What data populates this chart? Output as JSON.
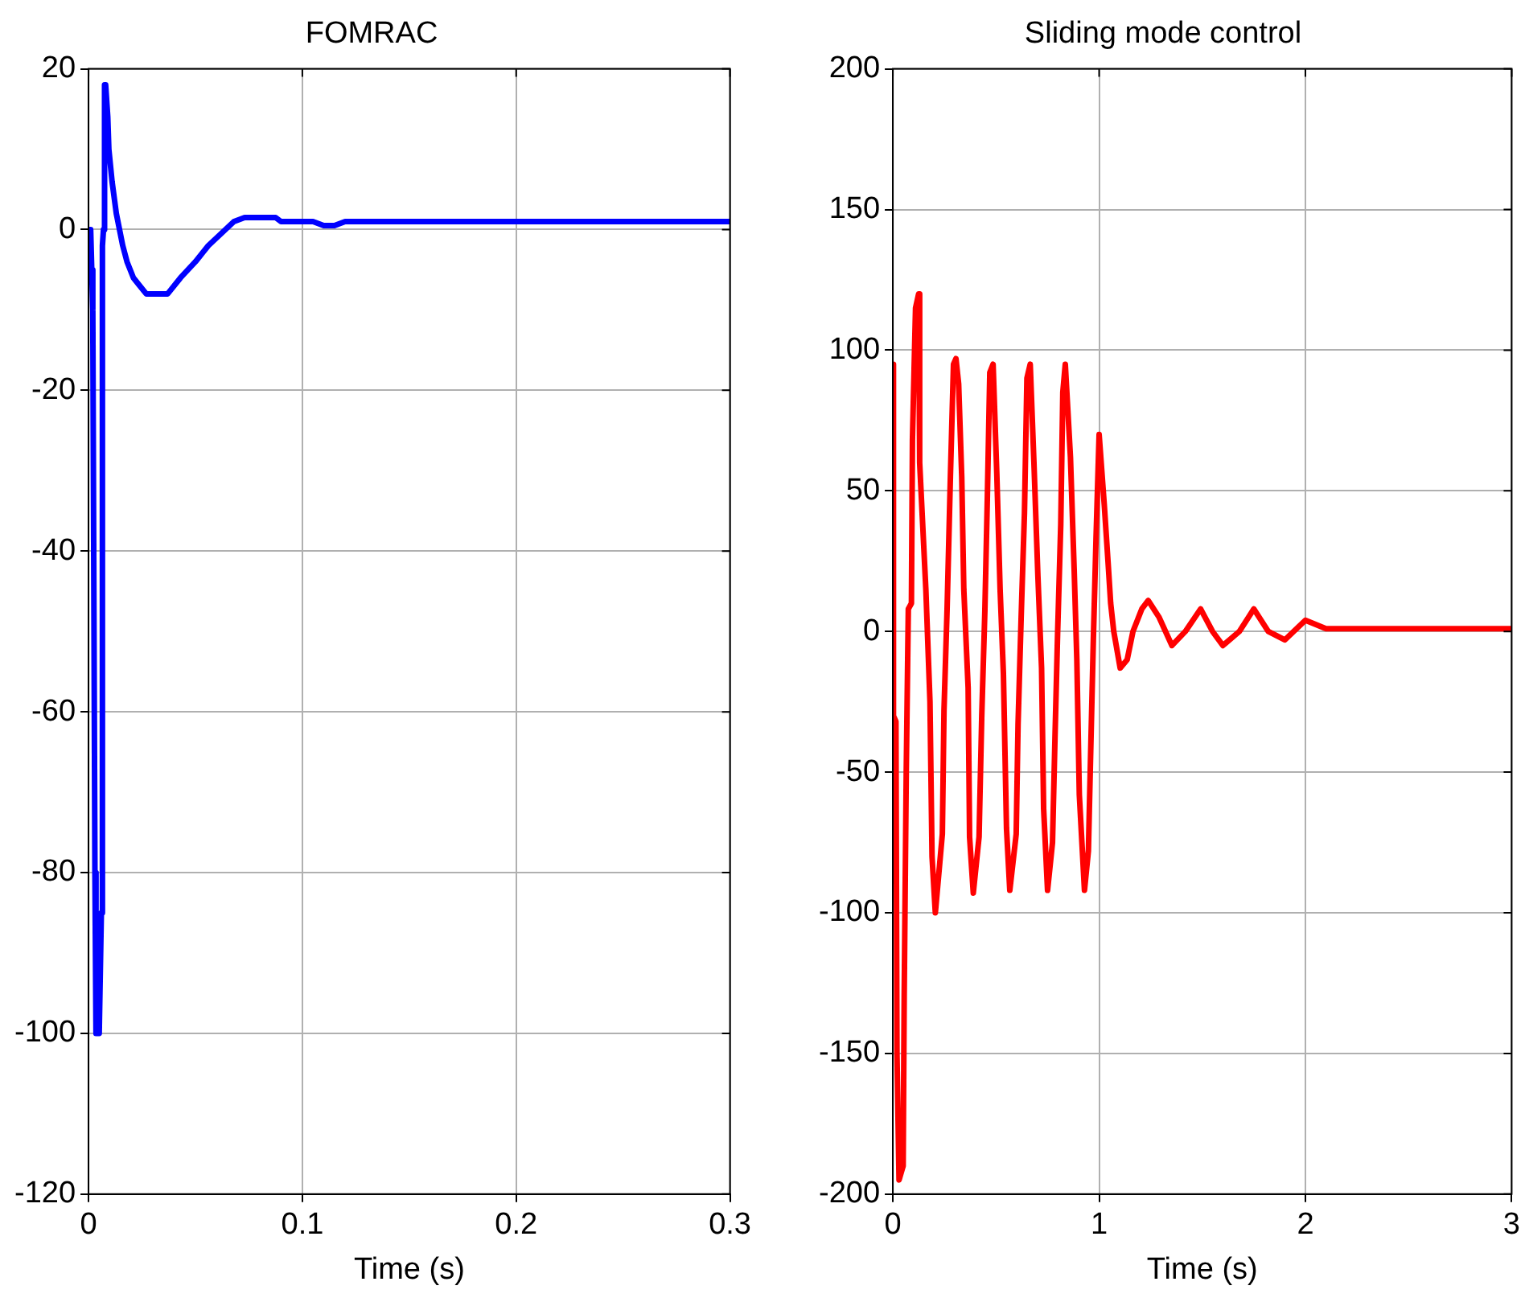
{
  "chart_data": [
    {
      "type": "line",
      "title": "FOMRAC",
      "xlabel": "Time (s)",
      "xlim": [
        0,
        0.3
      ],
      "xticks": [
        0,
        0.1,
        0.2,
        0.3
      ],
      "ylim": [
        -120,
        20
      ],
      "yticks": [
        -120,
        -100,
        -80,
        -60,
        -40,
        -20,
        0,
        20
      ],
      "grid": true,
      "legend": false,
      "marker": "none",
      "line_style": "solid",
      "series": [
        {
          "color": "#0000ff",
          "x": [
            0,
            0.001,
            0.0015,
            0.002,
            0.003,
            0.0035,
            0.005,
            0.006,
            0.0065,
            0.007,
            0.0075,
            0.008,
            0.009,
            0.0095,
            0.011,
            0.013,
            0.016,
            0.018,
            0.021,
            0.024,
            0.027,
            0.029,
            0.031,
            0.037,
            0.043,
            0.05,
            0.056,
            0.06,
            0.064,
            0.068,
            0.073,
            0.08,
            0.0875,
            0.09,
            0.1,
            0.105,
            0.11,
            0.115,
            0.12,
            0.2,
            0.3
          ],
          "values": [
            0,
            0,
            -5,
            -10,
            -80,
            -100,
            -100,
            -85,
            -2,
            0,
            18,
            18,
            14,
            10,
            6,
            2,
            -2,
            -4,
            -6,
            -7,
            -8,
            -8,
            -8,
            -8,
            -6,
            -4,
            -2,
            -1,
            0,
            1,
            1.5,
            1.5,
            1.5,
            1,
            1,
            1,
            0.5,
            0.5,
            1,
            1,
            1
          ]
        }
      ]
    },
    {
      "type": "line",
      "title": "Sliding mode control",
      "xlabel": "Time (s)",
      "xlim": [
        0,
        3
      ],
      "xticks": [
        0,
        1,
        2,
        3
      ],
      "ylim": [
        -200,
        200
      ],
      "yticks": [
        -200,
        -150,
        -100,
        -50,
        0,
        50,
        100,
        150,
        200
      ],
      "grid": true,
      "legend": false,
      "marker": "none",
      "line_style": "solid",
      "series": [
        {
          "color": "#ff0000",
          "x": [
            0,
            0.003,
            0.015,
            0.02,
            0.03,
            0.05,
            0.055,
            0.065,
            0.075,
            0.09,
            0.095,
            0.11,
            0.125,
            0.13,
            0.16,
            0.18,
            0.19,
            0.206,
            0.24,
            0.248,
            0.263,
            0.279,
            0.294,
            0.306,
            0.319,
            0.334,
            0.344,
            0.365,
            0.372,
            0.39,
            0.418,
            0.431,
            0.446,
            0.458,
            0.47,
            0.486,
            0.504,
            0.52,
            0.536,
            0.551,
            0.567,
            0.598,
            0.607,
            0.622,
            0.638,
            0.65,
            0.666,
            0.684,
            0.703,
            0.721,
            0.731,
            0.75,
            0.774,
            0.786,
            0.799,
            0.814,
            0.824,
            0.836,
            0.861,
            0.879,
            0.892,
            0.904,
            0.929,
            0.948,
            0.96,
            0.972,
            0.985,
            1.0,
            1.025,
            1.043,
            1.056,
            1.071,
            1.102,
            1.136,
            1.164,
            1.207,
            1.238,
            1.291,
            1.353,
            1.418,
            1.492,
            1.55,
            1.6,
            1.68,
            1.75,
            1.82,
            1.9,
            2.0,
            2.1,
            2.5,
            3.0
          ],
          "values": [
            95,
            -30,
            -32,
            -150,
            -195,
            -190,
            -130,
            -50,
            8,
            10,
            68,
            115,
            120,
            60,
            15,
            -25,
            -80,
            -100,
            -72,
            -28,
            8,
            55,
            95,
            97,
            88,
            55,
            15,
            -20,
            -73,
            -93,
            -73,
            -30,
            7,
            47,
            92,
            95,
            56,
            15,
            -15,
            -70,
            -92,
            -72,
            -33,
            5,
            42,
            90,
            95,
            60,
            20,
            -13,
            -63,
            -92,
            -75,
            -38,
            0,
            38,
            85,
            95,
            62,
            22,
            -10,
            -58,
            -92,
            -78,
            -40,
            -3,
            33,
            70,
            45,
            25,
            10,
            0,
            -13,
            -10,
            0,
            8,
            11,
            5,
            -5,
            0,
            8,
            0,
            -5,
            0,
            8,
            0,
            -3,
            4,
            1,
            1,
            1
          ]
        }
      ]
    }
  ]
}
